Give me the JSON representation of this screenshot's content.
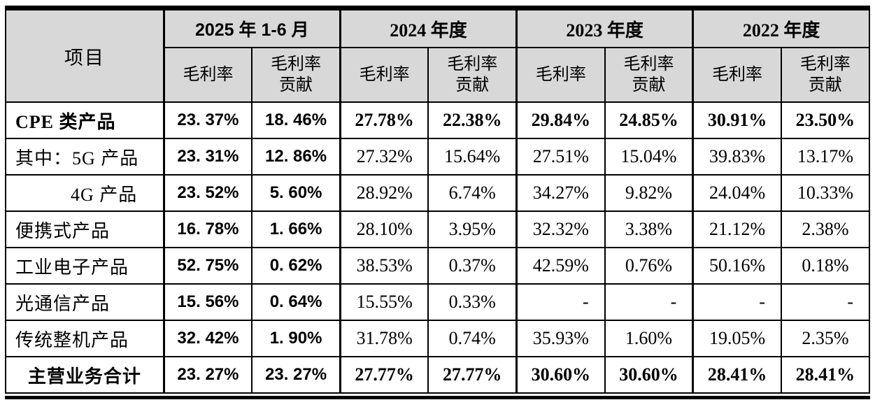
{
  "table": {
    "corner_header": "项目",
    "period_groups": [
      {
        "label": "2025 年 1-6 月",
        "sub": [
          "毛利率",
          "毛利率\n贡献"
        ]
      },
      {
        "label": "2024 年度",
        "sub": [
          "毛利率",
          "毛利率\n贡献"
        ]
      },
      {
        "label": "2023 年度",
        "sub": [
          "毛利率",
          "毛利率\n贡献"
        ]
      },
      {
        "label": "2022 年度",
        "sub": [
          "毛利率",
          "毛利率\n贡献"
        ]
      }
    ],
    "rows": [
      {
        "label": "CPE 类产品",
        "style": "bold",
        "indent": "none",
        "align": "left",
        "values": [
          "23. 37%",
          "18. 46%",
          "27.78%",
          "22.38%",
          "29.84%",
          "24.85%",
          "30.91%",
          "23.50%"
        ]
      },
      {
        "label": "其中：5G 产品",
        "style": "normal",
        "indent": "none",
        "align": "left",
        "values": [
          "23. 31%",
          "12. 86%",
          "27.32%",
          "15.64%",
          "27.51%",
          "15.04%",
          "39.83%",
          "13.17%"
        ]
      },
      {
        "label": "4G 产品",
        "style": "normal",
        "indent": "deep",
        "align": "left",
        "values": [
          "23. 52%",
          "5. 60%",
          "28.92%",
          "6.74%",
          "34.27%",
          "9.82%",
          "24.04%",
          "10.33%"
        ]
      },
      {
        "label": "便携式产品",
        "style": "normal",
        "indent": "none",
        "align": "left",
        "values": [
          "16. 78%",
          "1. 66%",
          "28.10%",
          "3.95%",
          "32.32%",
          "3.38%",
          "21.12%",
          "2.38%"
        ]
      },
      {
        "label": "工业电子产品",
        "style": "normal",
        "indent": "none",
        "align": "left",
        "values": [
          "52. 75%",
          "0. 62%",
          "38.53%",
          "0.37%",
          "42.59%",
          "0.76%",
          "50.16%",
          "0.18%"
        ]
      },
      {
        "label": "光通信产品",
        "style": "normal",
        "indent": "none",
        "align": "left",
        "values": [
          "15. 56%",
          "0. 64%",
          "15.55%",
          "0.33%",
          "-",
          "-",
          "-",
          "-"
        ]
      },
      {
        "label": "传统整机产品",
        "style": "normal",
        "indent": "none",
        "align": "left",
        "values": [
          "32. 42%",
          "1. 90%",
          "31.78%",
          "0.74%",
          "35.93%",
          "1.60%",
          "19.05%",
          "2.35%"
        ]
      },
      {
        "label": "主营业务合计",
        "style": "bold",
        "indent": "none",
        "align": "center",
        "values": [
          "23. 27%",
          "23. 27%",
          "27.77%",
          "27.77%",
          "30.60%",
          "30.60%",
          "28.41%",
          "28.41%"
        ]
      }
    ]
  },
  "colors": {
    "header_background": "#d8d8d8",
    "border": "#000000",
    "text": "#000000",
    "page_background": "#ffffff"
  }
}
